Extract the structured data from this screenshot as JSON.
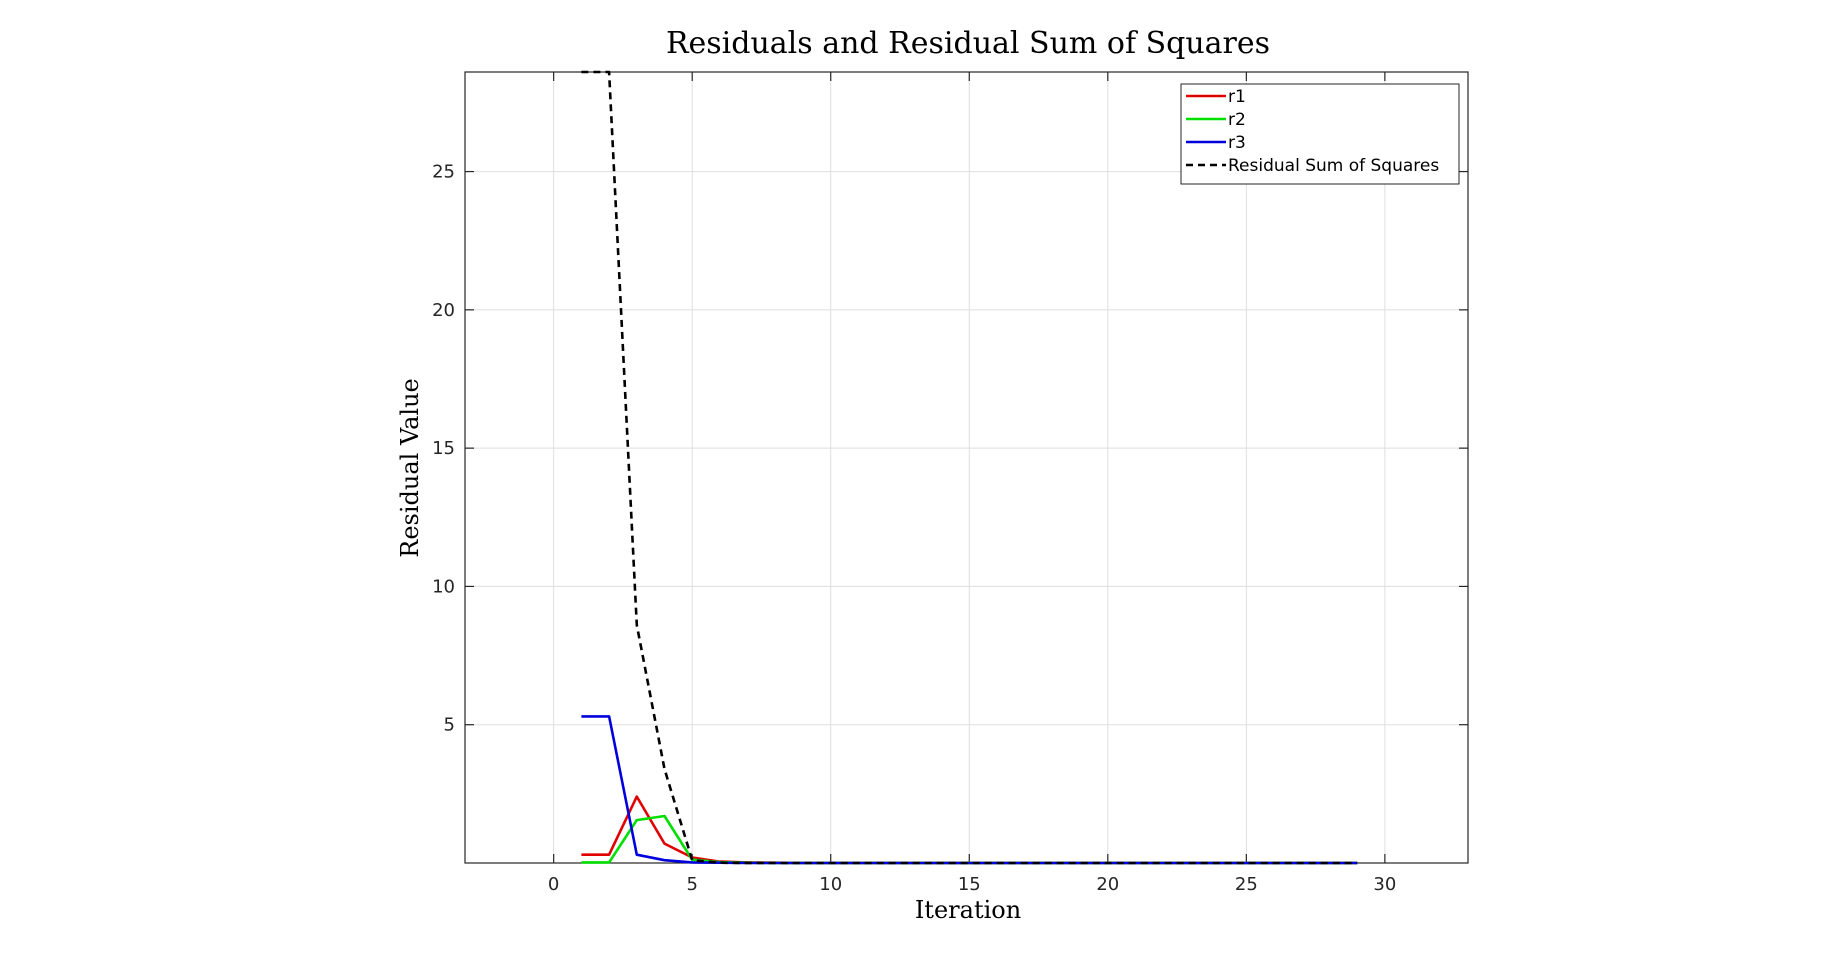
{
  "chart_data": {
    "type": "line",
    "title": "Residuals and Residual Sum of Squares",
    "xlabel": "Iteration",
    "ylabel": "Residual Value",
    "xlim": [
      -3.2,
      33
    ],
    "ylim": [
      0,
      28.6
    ],
    "xticks": [
      0,
      5,
      10,
      15,
      20,
      25,
      30
    ],
    "yticks": [
      5,
      10,
      15,
      20,
      25
    ],
    "grid": true,
    "legend_position": "top-right",
    "x": [
      1,
      2,
      3,
      4,
      5,
      6,
      7,
      8,
      9,
      10,
      11,
      12,
      13,
      14,
      15,
      16,
      17,
      18,
      19,
      20,
      21,
      22,
      23,
      24,
      25,
      26,
      27,
      28,
      29
    ],
    "series": [
      {
        "name": "r1",
        "color": "#e00000",
        "dash": "solid",
        "values": [
          0.3,
          0.3,
          2.4,
          0.7,
          0.2,
          0.05,
          0.02,
          0.01,
          0,
          0,
          0,
          0,
          0,
          0,
          0,
          0,
          0,
          0,
          0,
          0,
          0,
          0,
          0,
          0,
          0,
          0,
          0,
          0,
          0
        ]
      },
      {
        "name": "r2",
        "color": "#00e000",
        "dash": "solid",
        "values": [
          0.02,
          0.02,
          1.55,
          1.7,
          0.12,
          0.03,
          0.01,
          0,
          0,
          0,
          0,
          0,
          0,
          0,
          0,
          0,
          0,
          0,
          0,
          0,
          0,
          0,
          0,
          0,
          0,
          0,
          0,
          0,
          0
        ]
      },
      {
        "name": "r3",
        "color": "#0000dd",
        "dash": "solid",
        "values": [
          5.3,
          5.3,
          0.3,
          0.1,
          0.02,
          0.01,
          0,
          0,
          0,
          0,
          0,
          0,
          0,
          0,
          0,
          0,
          0,
          0,
          0,
          0,
          0,
          0,
          0,
          0,
          0,
          0,
          0,
          0,
          0
        ]
      },
      {
        "name": "Residual Sum of Squares",
        "color": "#000000",
        "dash": "dashed",
        "values": [
          28.6,
          28.6,
          8.6,
          3.4,
          0.1,
          0.01,
          0,
          0,
          0,
          0,
          0,
          0,
          0,
          0,
          0,
          0,
          0,
          0,
          0,
          0,
          0,
          0,
          0,
          0,
          0,
          0,
          0,
          0,
          0
        ]
      }
    ]
  }
}
